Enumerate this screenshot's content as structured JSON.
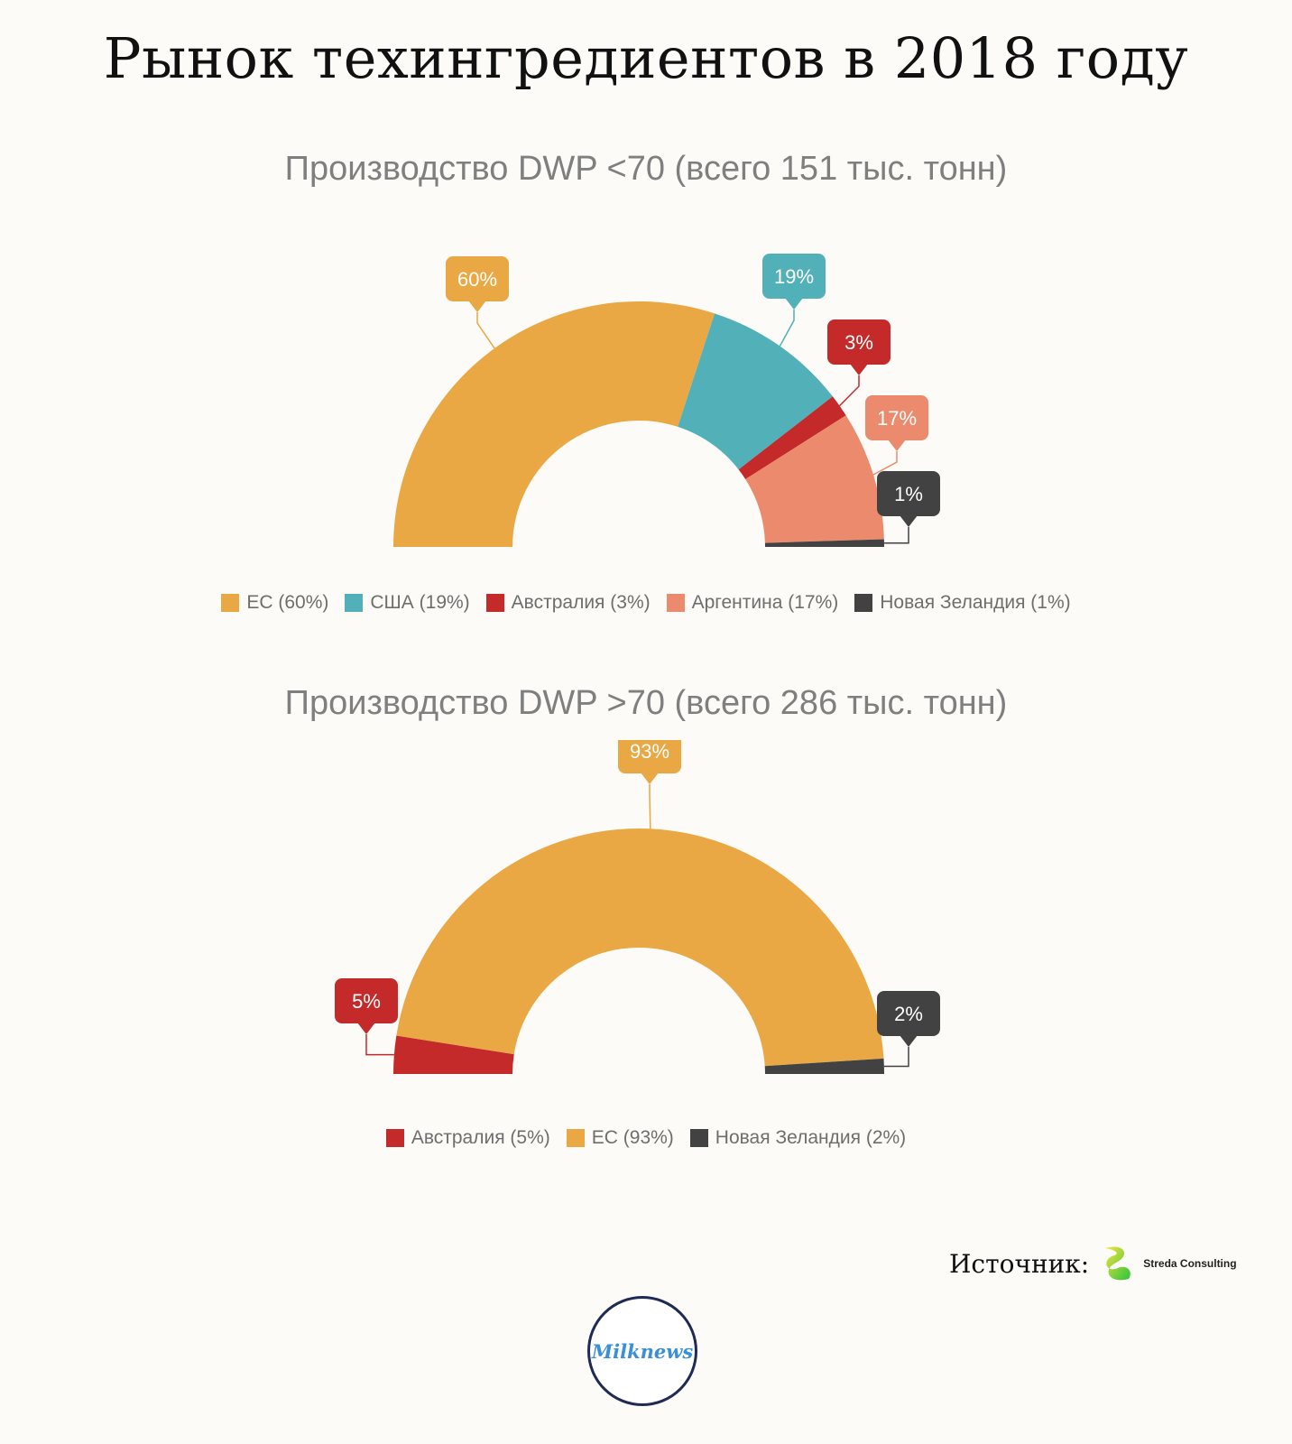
{
  "title": "Рынок техингредиентов в 2018 году",
  "source_label": "Источник:",
  "source_name": "Streda Consulting",
  "logo_text": "Milknews",
  "chart_data": [
    {
      "type": "pie",
      "title": "Производство DWP <70 (всего 151 тыс. тонн)",
      "categories": [
        "ЕС",
        "США",
        "Австралия",
        "Аргентина",
        "Новая Зеландия"
      ],
      "values": [
        60,
        19,
        3,
        17,
        1
      ],
      "labels": [
        "60%",
        "19%",
        "3%",
        "17%",
        "1%"
      ],
      "legend": [
        "ЕС (60%)",
        "США (19%)",
        "Австралия (3%)",
        "Аргентина (17%)",
        "Новая Зеландия (1%)"
      ],
      "colors": [
        "#e9a843",
        "#52b0b8",
        "#c42a2a",
        "#ec8a6d",
        "#424242"
      ],
      "legend_position": "bottom"
    },
    {
      "type": "pie",
      "title": "Производство DWP >70 (всего 286 тыс. тонн)",
      "categories": [
        "Австралия",
        "ЕС",
        "Новая Зеландия"
      ],
      "values": [
        5,
        93,
        2
      ],
      "labels": [
        "5%",
        "93%",
        "2%"
      ],
      "legend": [
        "Австралия (5%)",
        "ЕС (93%)",
        "Новая Зеландия (2%)"
      ],
      "colors": [
        "#c42a2a",
        "#e9a843",
        "#424242"
      ],
      "legend_position": "bottom"
    }
  ]
}
